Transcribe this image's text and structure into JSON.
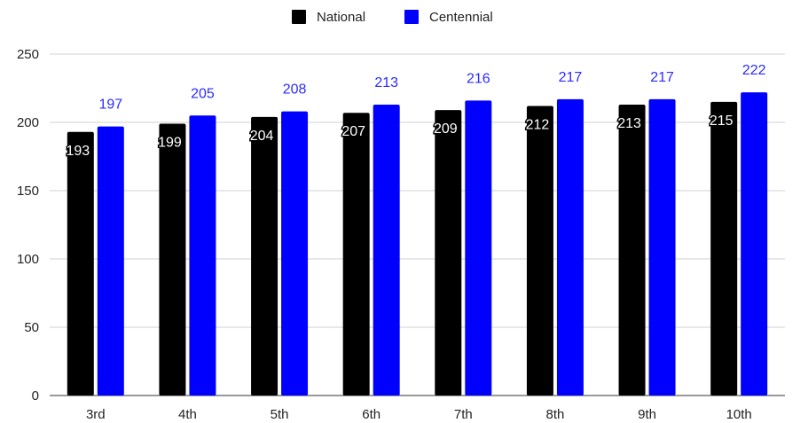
{
  "chart_data": {
    "type": "bar",
    "categories": [
      "3rd",
      "4th",
      "5th",
      "6th",
      "7th",
      "8th",
      "9th",
      "10th"
    ],
    "series": [
      {
        "name": "National",
        "values": [
          193,
          199,
          204,
          207,
          209,
          212,
          213,
          215
        ],
        "color": "#000000",
        "label_color": "#ffffff"
      },
      {
        "name": "Centennial",
        "values": [
          197,
          205,
          208,
          213,
          216,
          217,
          217,
          222
        ],
        "color": "#0000ff",
        "label_color": "#2b2bff"
      }
    ],
    "ylim": [
      0,
      250
    ],
    "yticks": [
      0,
      50,
      100,
      150,
      200,
      250
    ],
    "grid": true,
    "legend": "top-center"
  }
}
